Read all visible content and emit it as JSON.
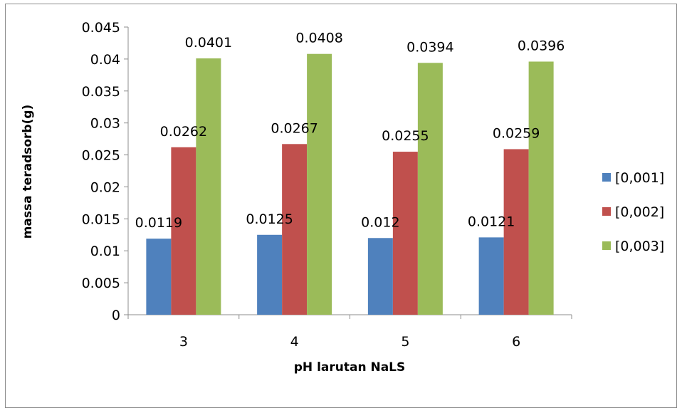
{
  "chart_data": {
    "type": "bar",
    "title": "",
    "xlabel": "pH larutan NaLS",
    "ylabel": "massa teradsorb(g)",
    "categories": [
      "3",
      "4",
      "5",
      "6"
    ],
    "ylim": [
      0,
      0.045
    ],
    "yticks": [
      "0",
      "0.005",
      "0.01",
      "0.015",
      "0.02",
      "0.025",
      "0.03",
      "0.035",
      "0.04",
      "0.045"
    ],
    "grid": false,
    "legend": "right",
    "series": [
      {
        "name": "[0,001]",
        "color": "#4F81BD",
        "values": [
          0.0119,
          0.0125,
          0.012,
          0.0121
        ],
        "labels": [
          "0.0119",
          "0.0125",
          "0.012",
          "0.0121"
        ]
      },
      {
        "name": "[0,002]",
        "color": "#C0504D",
        "values": [
          0.0262,
          0.0267,
          0.0255,
          0.0259
        ],
        "labels": [
          "0.0262",
          "0.0267",
          "0.0255",
          "0.0259"
        ]
      },
      {
        "name": "[0,003]",
        "color": "#9BBB59",
        "values": [
          0.0401,
          0.0408,
          0.0394,
          0.0396
        ],
        "labels": [
          "0.0401",
          "0.0408",
          "0.0394",
          "0.0396"
        ]
      }
    ]
  }
}
